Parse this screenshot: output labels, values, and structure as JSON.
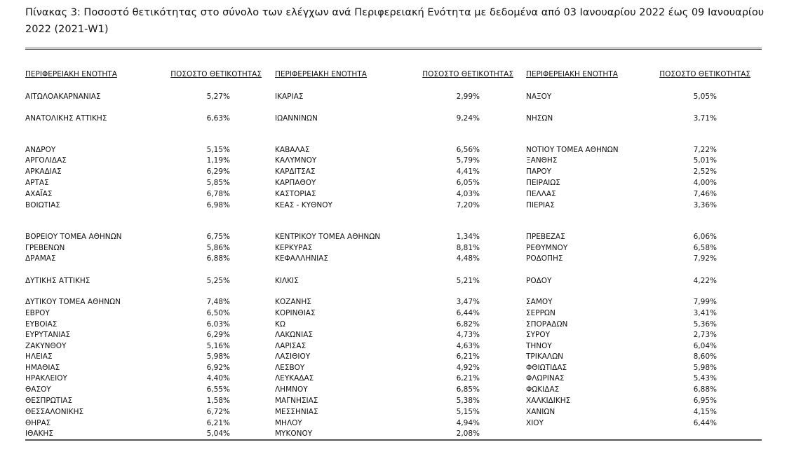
{
  "header": {
    "title": "Πίνακας 3:  Ποσοστό θετικότητας στο σύνολο των ελέγχων ανά Περιφερειακή Ενότητα με δεδομένα από 03 Ιανουαρίου 2022 έως 09 Ιανουαρίου 2022 (2021-W1)"
  },
  "table": {
    "columns": [
      "ΠΕΡΙΦΕΡΕΙΑΚΗ ΕΝΟΤΗΤΑ",
      "ΠΟΣΟΣΤΟ ΘΕΤΙΚΟΤΗΤΑΣ",
      "ΠΕΡΙΦΕΡΕΙΑΚΗ ΕΝΟΤΗΤΑ",
      "ΠΟΣΟΣΤΟ ΘΕΤΙΚΟΤΗΤΑΣ",
      "ΠΕΡΙΦΕΡΕΙΑΚΗ ΕΝΟΤΗΤΑ",
      "ΠΟΣΟΣΤΟ ΘΕΤΙΚΟΤΗΤΑΣ"
    ],
    "rows": [
      [
        "ΑΙΤΩΛΟΑΚΑΡΝΑΝΙΑΣ",
        "5,27%",
        "ΙΚΑΡΙΑΣ",
        "2,99%",
        "ΝΑΞΟΥ",
        "5,05%"
      ],
      [
        "ΑΝΑΤΟΛΙΚΗΣ ΑΤΤΙΚΗΣ",
        "6,63%",
        "ΙΩΑΝΝΙΝΩΝ",
        "9,24%",
        "ΝΗΣΩΝ",
        "3,71%"
      ],
      [
        "ΑΝΔΡΟΥ",
        "5,15%",
        "ΚΑΒΑΛΑΣ",
        "6,56%",
        "ΝΟΤΙΟΥ ΤΟΜΕΑ ΑΘΗΝΩΝ",
        "7,22%"
      ],
      [
        "ΑΡΓΟΛΙΔΑΣ",
        "1,19%",
        "ΚΑΛΥΜΝΟΥ",
        "5,79%",
        "ΞΑΝΘΗΣ",
        "5,01%"
      ],
      [
        "ΑΡΚΑΔΙΑΣ",
        "6,29%",
        "ΚΑΡΔΙΤΣΑΣ",
        "4,41%",
        "ΠΑΡΟΥ",
        "2,52%"
      ],
      [
        "ΑΡΤΑΣ",
        "5,85%",
        "ΚΑΡΠΑΘΟΥ",
        "6,05%",
        "ΠΕΙΡΑΙΩΣ",
        "4,00%"
      ],
      [
        "ΑΧΑΪΑΣ",
        "6,78%",
        "ΚΑΣΤΟΡΙΑΣ",
        "4,03%",
        "ΠΕΛΛΑΣ",
        "7,46%"
      ],
      [
        "ΒΟΙΩΤΙΑΣ",
        "6,98%",
        "ΚΕΑΣ - ΚΥΘΝΟΥ",
        "7,20%",
        "ΠΙΕΡΙΑΣ",
        "3,36%"
      ],
      [
        "ΒΟΡΕΙΟΥ ΤΟΜΕΑ ΑΘΗΝΩΝ",
        "6,75%",
        "ΚΕΝΤΡΙΚΟΥ ΤΟΜΕΑ ΑΘΗΝΩΝ",
        "1,34%",
        "ΠΡΕΒΕΖΑΣ",
        "6,06%"
      ],
      [
        "ΓΡΕΒΕΝΩΝ",
        "5,86%",
        "ΚΕΡΚΥΡΑΣ",
        "8,81%",
        "ΡΕΘΥΜΝΟΥ",
        "6,58%"
      ],
      [
        "ΔΡΑΜΑΣ",
        "6,88%",
        "ΚΕΦΑΛΛΗΝΙΑΣ",
        "4,48%",
        "ΡΟΔΟΠΗΣ",
        "7,92%"
      ],
      [
        "ΔΥΤΙΚΗΣ ΑΤΤΙΚΗΣ",
        "5,25%",
        "ΚΙΛΚΙΣ",
        "5,21%",
        "ΡΟΔΟΥ",
        "4,22%"
      ],
      [
        "ΔΥΤΙΚΟΥ ΤΟΜΕΑ ΑΘΗΝΩΝ",
        "7,48%",
        "ΚΟΖΑΝΗΣ",
        "3,47%",
        "ΣΑΜΟΥ",
        "7,99%"
      ],
      [
        "ΕΒΡΟΥ",
        "6,50%",
        "ΚΟΡΙΝΘΙΑΣ",
        "6,44%",
        "ΣΕΡΡΩΝ",
        "3,41%"
      ],
      [
        "ΕΥΒΟΙΑΣ",
        "6,03%",
        "ΚΩ",
        "6,82%",
        "ΣΠΟΡΑΔΩΝ",
        "5,36%"
      ],
      [
        "ΕΥΡΥΤΑΝΙΑΣ",
        "6,29%",
        "ΛΑΚΩΝΙΑΣ",
        "4,73%",
        "ΣΥΡΟΥ",
        "2,73%"
      ],
      [
        "ΖΑΚΥΝΘΟΥ",
        "5,16%",
        "ΛΑΡΙΣΑΣ",
        "4,63%",
        "ΤΗΝΟΥ",
        "6,04%"
      ],
      [
        "ΗΛΕΙΑΣ",
        "5,98%",
        "ΛΑΣΙΘΙΟΥ",
        "6,21%",
        "ΤΡΙΚΑΛΩΝ",
        "8,60%"
      ],
      [
        "ΗΜΑΘΙΑΣ",
        "6,92%",
        "ΛΕΣΒΟΥ",
        "4,92%",
        "ΦΘΙΩΤΙΔΑΣ",
        "5,98%"
      ],
      [
        "ΗΡΑΚΛΕΙΟΥ",
        "4,40%",
        "ΛΕΥΚΑΔΑΣ",
        "6,21%",
        "ΦΛΩΡΙΝΑΣ",
        "5,43%"
      ],
      [
        "ΘΑΣΟΥ",
        "6,55%",
        "ΛΗΜΝΟΥ",
        "6,85%",
        "ΦΩΚΙΔΑΣ",
        "6,88%"
      ],
      [
        "ΘΕΣΠΡΩΤΙΑΣ",
        "1,58%",
        "ΜΑΓΝΗΣΙΑΣ",
        "5,38%",
        "ΧΑΛΚΙΔΙΚΗΣ",
        "6,95%"
      ],
      [
        "ΘΕΣΣΑΛΟΝΙΚΗΣ",
        "6,72%",
        "ΜΕΣΣΗΝΙΑΣ",
        "5,15%",
        "ΧΑΝΙΩΝ",
        "4,15%"
      ],
      [
        "ΘΗΡΑΣ",
        "6,21%",
        "ΜΗΛΟΥ",
        "4,94%",
        "ΧΙΟΥ",
        "6,44%"
      ],
      [
        "ΙΘΑΚΗΣ",
        "5,04%",
        "ΜΥΚΟΝΟΥ",
        "2,08%"
      ]
    ]
  }
}
